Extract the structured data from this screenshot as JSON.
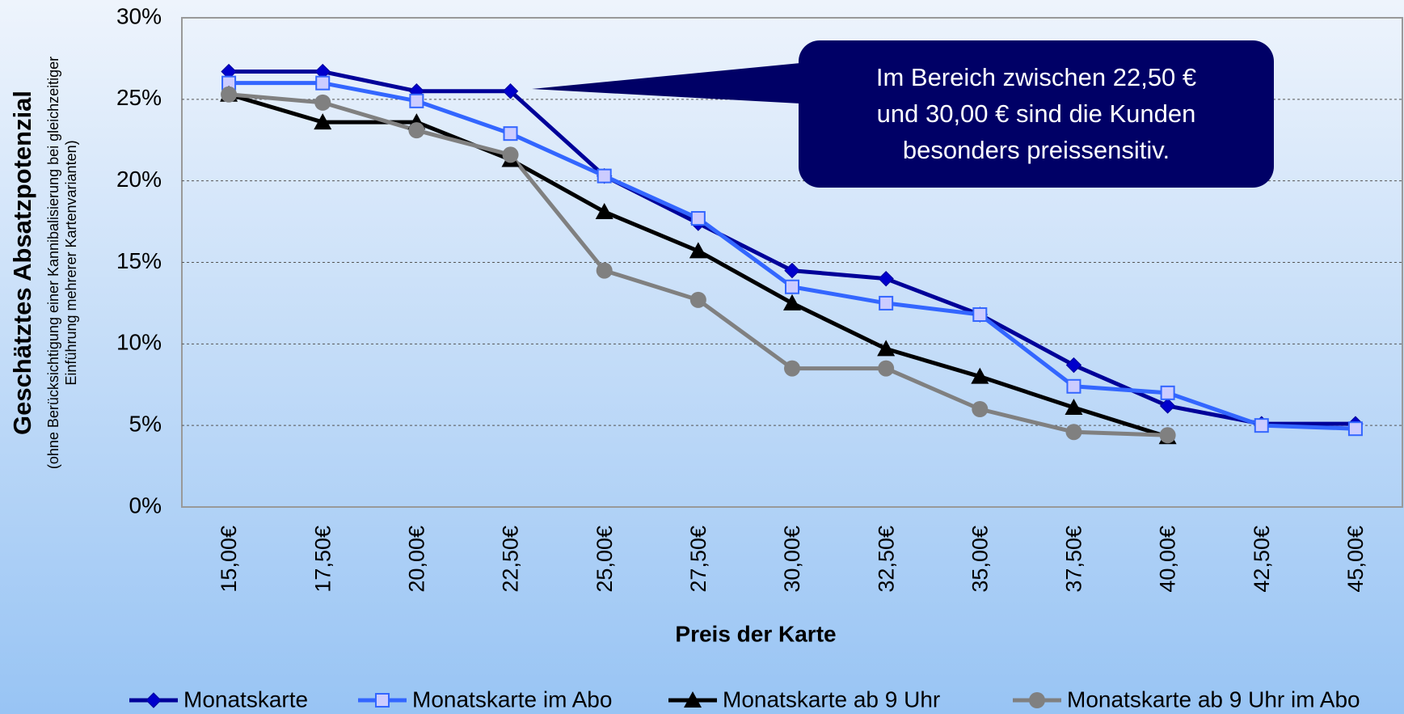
{
  "chart_data": {
    "type": "line",
    "xlabel": "Preis der Karte",
    "ylabel": "Geschätztes Absatzpotenzial",
    "ylabel_note": [
      "(ohne Berücksichtigung einer Kannibalisierung bei gleichzeitiger",
      "Einführung mehrerer Kartenvarianten)"
    ],
    "annotation": [
      "Im Bereich zwischen 22,50 €",
      "und 30,00 € sind die Kunden",
      "besonders preissensitiv."
    ],
    "categories": [
      "15,00€",
      "17,50€",
      "20,00€",
      "22,50€",
      "25,00€",
      "27,50€",
      "30,00€",
      "32,50€",
      "35,00€",
      "37,50€",
      "40,00€",
      "42,50€",
      "45,00€"
    ],
    "series": [
      {
        "name": "Monatskarte",
        "color": "#000099",
        "marker": "diamond",
        "marker_color": "#0000cc",
        "values": [
          26.7,
          26.7,
          25.5,
          25.5,
          20.3,
          17.4,
          14.5,
          14.0,
          11.8,
          8.7,
          6.2,
          5.1,
          5.1
        ]
      },
      {
        "name": "Monatskarte im Abo",
        "color": "#3366ff",
        "marker": "square",
        "marker_color": "#ccccff",
        "values": [
          26.0,
          26.0,
          24.9,
          22.9,
          20.3,
          17.7,
          13.5,
          12.5,
          11.8,
          7.4,
          7.0,
          5.0,
          4.8
        ]
      },
      {
        "name": "Monatskarte ab 9 Uhr",
        "color": "#000000",
        "marker": "triangle",
        "marker_color": "#000000",
        "values": [
          25.3,
          23.6,
          23.6,
          21.3,
          18.1,
          15.7,
          12.5,
          9.7,
          8.0,
          6.1,
          4.3,
          null,
          null
        ]
      },
      {
        "name": "Monatskarte ab 9 Uhr im Abo",
        "color": "#808080",
        "marker": "circle",
        "marker_color": "#808080",
        "values": [
          25.3,
          24.8,
          23.1,
          21.6,
          14.5,
          12.7,
          8.5,
          8.5,
          6.0,
          4.6,
          4.4,
          null,
          null
        ]
      }
    ],
    "ylim": [
      0,
      30
    ],
    "yticks": [
      {
        "value": 0,
        "label": "0%"
      },
      {
        "value": 5,
        "label": "5%"
      },
      {
        "value": 10,
        "label": "10%"
      },
      {
        "value": 15,
        "label": "15%"
      },
      {
        "value": 20,
        "label": "20%"
      },
      {
        "value": 25,
        "label": "25%"
      },
      {
        "value": 30,
        "label": "30%"
      }
    ],
    "grid": true,
    "legend": "bottom"
  }
}
